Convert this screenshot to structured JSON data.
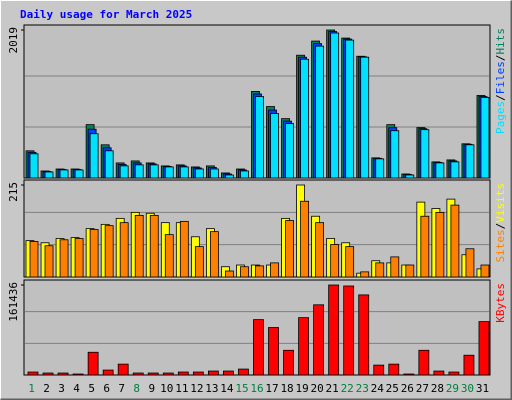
{
  "chart_data": {
    "type": "bar",
    "title": "Daily usage for March 2025",
    "title_color": "#0000ff",
    "legend_separator": "/",
    "categories": [
      "1",
      "2",
      "3",
      "4",
      "5",
      "6",
      "7",
      "8",
      "9",
      "10",
      "11",
      "12",
      "13",
      "14",
      "15",
      "16",
      "17",
      "18",
      "19",
      "20",
      "21",
      "22",
      "23",
      "24",
      "25",
      "26",
      "27",
      "28",
      "29",
      "30",
      "31"
    ],
    "category_colors": [
      "#008040",
      "#000000",
      "#000000",
      "#000000",
      "#000000",
      "#000000",
      "#000000",
      "#008040",
      "#000000",
      "#000000",
      "#000000",
      "#000000",
      "#000000",
      "#000000",
      "#008040",
      "#008040",
      "#000000",
      "#000000",
      "#000000",
      "#000000",
      "#000000",
      "#008040",
      "#008040",
      "#000000",
      "#000000",
      "#000000",
      "#000000",
      "#000000",
      "#008040",
      "#008040",
      "#000000"
    ],
    "panels": [
      {
        "ylim": [
          0,
          2019
        ],
        "yticks": [
          2019
        ],
        "series": [
          {
            "name": "Hits",
            "color": "#00805c",
            "values": [
              371,
              96,
              123,
              123,
              728,
              453,
              206,
              233,
              206,
              165,
              179,
              151,
              165,
              69,
              123,
              1181,
              975,
              810,
              1675,
              1868,
              2019,
              1909,
              1661,
              275,
              728,
              55,
              687,
              220,
              247,
              467,
              1126
            ]
          },
          {
            "name": "Files",
            "color": "#0040ff",
            "values": [
              350,
              89,
              116,
              116,
              666,
              412,
              185,
              206,
              192,
              158,
              165,
              137,
              144,
              55,
              110,
              1146,
              927,
              776,
              1648,
              1833,
              1998,
              1895,
              1654,
              268,
              686,
              48,
              673,
              213,
              233,
              460,
              1112
            ]
          },
          {
            "name": "Pages",
            "color": "#00e0ff",
            "values": [
              330,
              82,
              110,
              110,
              604,
              371,
              165,
              179,
              179,
              151,
              151,
              123,
              123,
              41,
              96,
              1112,
              879,
              742,
              1620,
              1799,
              1978,
              1881,
              1648,
              261,
              645,
              41,
              659,
              206,
              220,
              453,
              1099
            ]
          }
        ]
      },
      {
        "ylim": [
          0,
          215
        ],
        "yticks": [
          215
        ],
        "series": [
          {
            "name": "Visits",
            "color": "#ffff00",
            "values": [
              85,
              80,
              90,
              92,
              113,
              123,
              137,
              151,
              149,
              127,
              127,
              94,
              113,
              24,
              28,
              28,
              28,
              137,
              215,
              142,
              90,
              80,
              9,
              38,
              33,
              28,
              175,
              160,
              182,
              52,
              19
            ]
          },
          {
            "name": "Sites",
            "color": "#ff8000",
            "values": [
              83,
              73,
              87,
              90,
              111,
              120,
              127,
              144,
              144,
              99,
              130,
              71,
              106,
              14,
              24,
              26,
              33,
              132,
              177,
              127,
              76,
              71,
              12,
              33,
              47,
              28,
              142,
              151,
              168,
              66,
              28
            ]
          }
        ]
      },
      {
        "ylim": [
          0,
          161436
        ],
        "yticks": [
          161436
        ],
        "series": [
          {
            "name": "KBytes",
            "color": "#ff0000",
            "values": [
              5322,
              3548,
              3548,
              1774,
              40800,
              8870,
              19500,
              3548,
              3548,
              3548,
              5322,
              5322,
              7096,
              7096,
              10644,
              99350,
              85150,
              44350,
              102900,
              125950,
              161436,
              159660,
              143700,
              17740,
              19500,
              1774,
              44350,
              7096,
              5322,
              35480,
              95800
            ]
          }
        ]
      }
    ]
  }
}
